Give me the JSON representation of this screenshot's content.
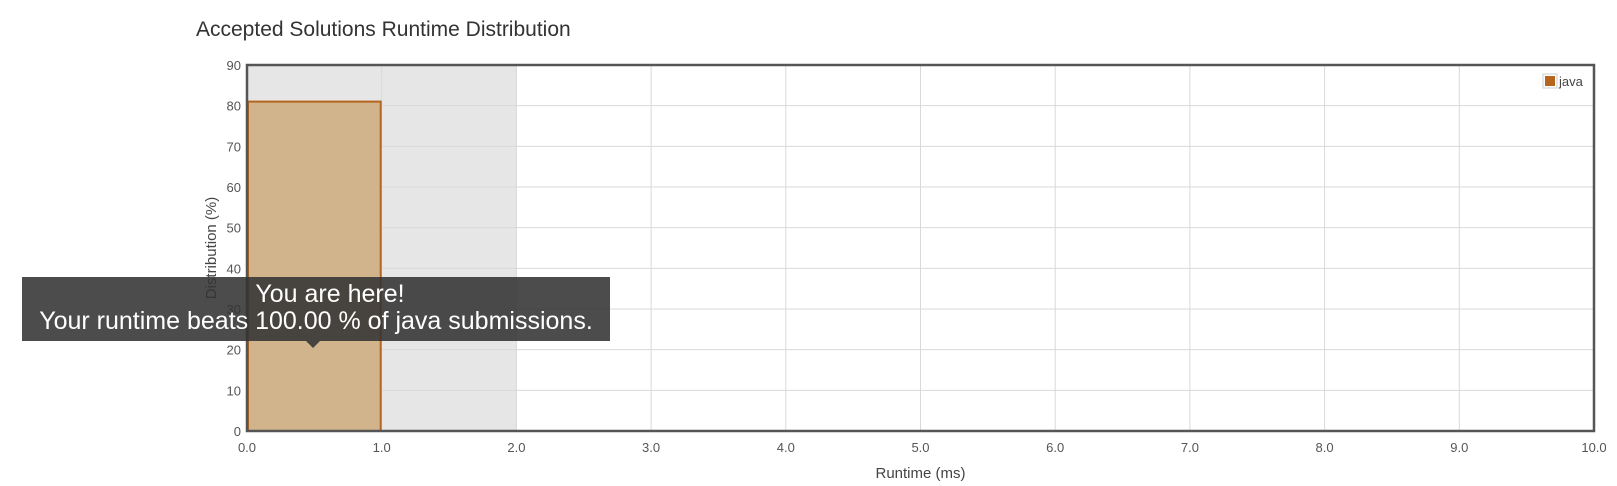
{
  "chart_data": {
    "type": "bar",
    "title": "Accepted Solutions Runtime Distribution",
    "xlabel": "Runtime (ms)",
    "ylabel": "Distribution (%)",
    "xlim": [
      0,
      10
    ],
    "ylim": [
      0,
      90
    ],
    "x_ticks": [
      "0.0",
      "1.0",
      "2.0",
      "3.0",
      "4.0",
      "5.0",
      "6.0",
      "7.0",
      "8.0",
      "9.0",
      "10.0"
    ],
    "y_ticks": [
      "0",
      "10",
      "20",
      "30",
      "40",
      "50",
      "60",
      "70",
      "80",
      "90"
    ],
    "grid": true,
    "legend_position": "top-right",
    "highlight_range": [
      0,
      2
    ],
    "series": [
      {
        "name": "java",
        "color": "#b5651d",
        "bars": [
          {
            "x_start": 0,
            "x_end": 1,
            "value": 81
          }
        ]
      }
    ]
  },
  "tooltip": {
    "line1": "You are here!",
    "line2": "Your runtime beats 100.00 % of java submissions."
  },
  "colors": {
    "bar_fill": "#d2b48c",
    "bar_stroke": "#b5651d",
    "legend_swatch": "#b5651d",
    "highlight": "#e6e6e6",
    "grid": "#d9d9d9",
    "frame": "#555555"
  }
}
